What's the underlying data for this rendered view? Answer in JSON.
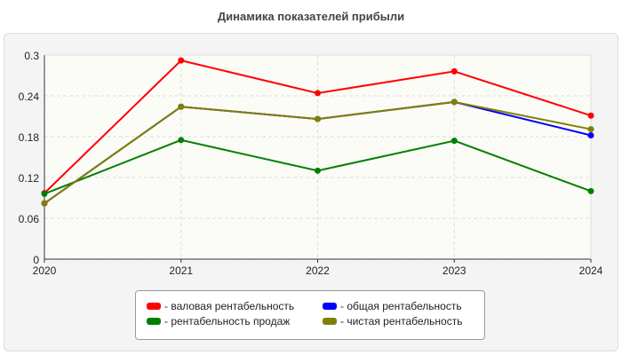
{
  "chart_data": {
    "type": "line",
    "title": "Динамика показателей прибыли",
    "x": [
      "2020",
      "2021",
      "2022",
      "2023",
      "2024"
    ],
    "ylim": [
      0,
      0.3
    ],
    "yticks": [
      "0",
      "0.06",
      "0.12",
      "0.18",
      "0.24",
      "0.3"
    ],
    "grid": true,
    "legend_position": "bottom",
    "series": [
      {
        "name": "- валовая рентабельность",
        "color": "#ff0000",
        "values": [
          0.097,
          0.292,
          0.244,
          0.276,
          0.211
        ]
      },
      {
        "name": "- общая рентабельность",
        "color": "#0000ff",
        "values": [
          0.082,
          0.224,
          0.206,
          0.231,
          0.182
        ]
      },
      {
        "name": "- рентабельность продаж",
        "color": "#008000",
        "values": [
          0.096,
          0.175,
          0.13,
          0.174,
          0.1
        ]
      },
      {
        "name": "- чистая рентабельность",
        "color": "#808000",
        "values": [
          0.082,
          0.224,
          0.206,
          0.231,
          0.191
        ]
      }
    ]
  }
}
